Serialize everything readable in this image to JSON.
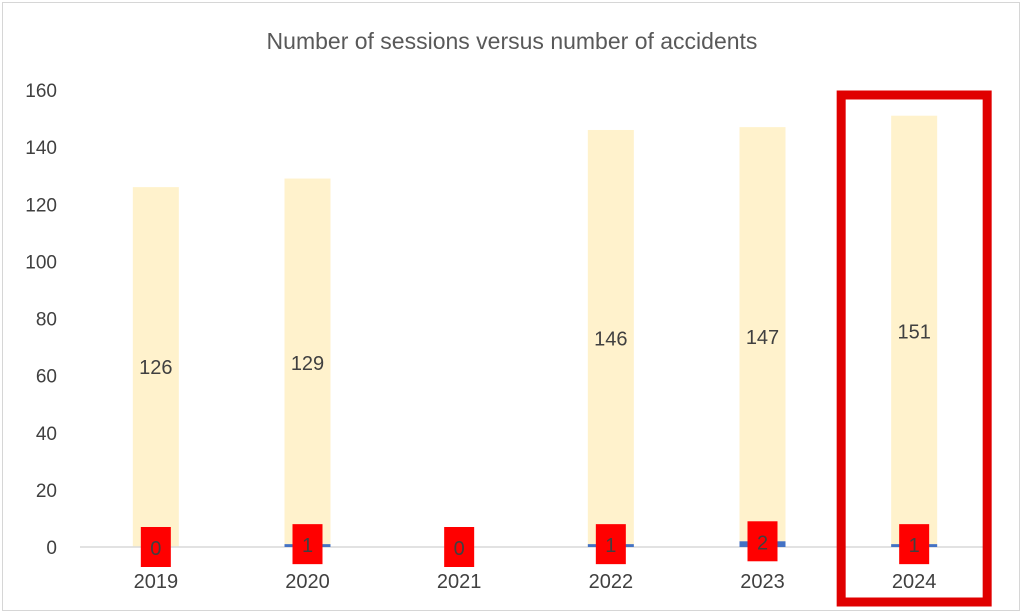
{
  "chart_data": {
    "type": "bar",
    "title": "Number of sessions versus number of accidents",
    "categories": [
      "2019",
      "2020",
      "2021",
      "2022",
      "2023",
      "2024"
    ],
    "series": [
      {
        "values": [
          126,
          129,
          0,
          146,
          147,
          151
        ]
      },
      {
        "values": [
          0,
          1,
          0,
          1,
          2,
          1
        ]
      }
    ],
    "ylim": [
      0,
      160
    ],
    "yticks": [
      0,
      20,
      40,
      60,
      80,
      100,
      120,
      140,
      160
    ],
    "grid": false,
    "highlight": "2024",
    "colors": {
      "sessions": "#fff2cc",
      "accidents": "#4472c4",
      "accident_label": "#ff0000",
      "highlight_box": "#e00000",
      "axis": "#d9d9d9",
      "text": "#404040"
    }
  }
}
